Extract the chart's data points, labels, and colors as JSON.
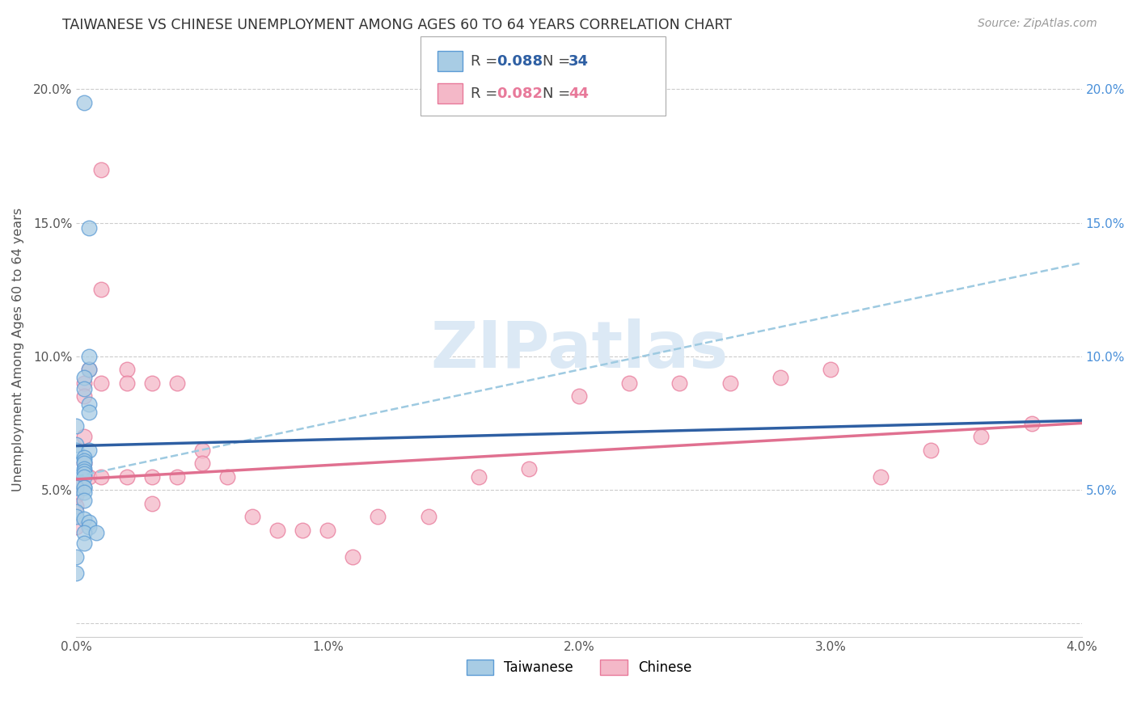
{
  "title": "TAIWANESE VS CHINESE UNEMPLOYMENT AMONG AGES 60 TO 64 YEARS CORRELATION CHART",
  "source": "Source: ZipAtlas.com",
  "ylabel": "Unemployment Among Ages 60 to 64 years",
  "xlim": [
    0.0,
    0.04
  ],
  "ylim": [
    -0.005,
    0.21
  ],
  "xticks": [
    0.0,
    0.01,
    0.02,
    0.03,
    0.04
  ],
  "xtick_labels": [
    "0.0%",
    "1.0%",
    "2.0%",
    "3.0%",
    "4.0%"
  ],
  "yticks": [
    0.0,
    0.05,
    0.1,
    0.15,
    0.2
  ],
  "ytick_labels_left": [
    "",
    "5.0%",
    "10.0%",
    "15.0%",
    "20.0%"
  ],
  "ytick_labels_right": [
    "",
    "5.0%",
    "10.0%",
    "15.0%",
    "20.0%"
  ],
  "tw_fill": "#a8cce4",
  "tw_edge": "#5b9bd5",
  "ch_fill": "#f4b8c8",
  "ch_edge": "#e8799a",
  "tw_line_color": "#2e5fa3",
  "ch_line_color": "#e07090",
  "tw_dash_color": "#9ecae1",
  "watermark_color": "#dce9f5",
  "bg_color": "#ffffff",
  "grid_color": "#cccccc",
  "tw_x": [
    0.0003,
    0.0005,
    0.0005,
    0.0003,
    0.0003,
    0.0005,
    0.0005,
    0.0,
    0.0,
    0.0,
    0.0005,
    0.0003,
    0.0003,
    0.0003,
    0.0003,
    0.0003,
    0.0003,
    0.0003,
    0.0003,
    0.0,
    0.0003,
    0.0003,
    0.0003,
    0.0,
    0.0,
    0.0003,
    0.0005,
    0.0005,
    0.0003,
    0.0008,
    0.0003,
    0.0,
    0.0,
    0.0005
  ],
  "tw_y": [
    0.195,
    0.148,
    0.095,
    0.092,
    0.088,
    0.082,
    0.079,
    0.074,
    0.067,
    0.065,
    0.065,
    0.062,
    0.061,
    0.06,
    0.058,
    0.057,
    0.056,
    0.055,
    0.051,
    0.051,
    0.051,
    0.049,
    0.046,
    0.042,
    0.04,
    0.039,
    0.038,
    0.036,
    0.034,
    0.034,
    0.03,
    0.025,
    0.019,
    0.1
  ],
  "ch_x": [
    0.0,
    0.0,
    0.0,
    0.0,
    0.0003,
    0.0003,
    0.0003,
    0.0003,
    0.0005,
    0.0005,
    0.001,
    0.001,
    0.001,
    0.001,
    0.002,
    0.002,
    0.002,
    0.003,
    0.003,
    0.003,
    0.004,
    0.004,
    0.005,
    0.005,
    0.006,
    0.007,
    0.008,
    0.009,
    0.01,
    0.011,
    0.012,
    0.014,
    0.016,
    0.018,
    0.02,
    0.022,
    0.024,
    0.026,
    0.028,
    0.03,
    0.032,
    0.034,
    0.036,
    0.038
  ],
  "ch_y": [
    0.052,
    0.048,
    0.044,
    0.036,
    0.09,
    0.085,
    0.07,
    0.06,
    0.095,
    0.055,
    0.17,
    0.125,
    0.09,
    0.055,
    0.095,
    0.09,
    0.055,
    0.09,
    0.055,
    0.045,
    0.09,
    0.055,
    0.065,
    0.06,
    0.055,
    0.04,
    0.035,
    0.035,
    0.035,
    0.025,
    0.04,
    0.04,
    0.055,
    0.058,
    0.085,
    0.09,
    0.09,
    0.09,
    0.092,
    0.095,
    0.055,
    0.065,
    0.07,
    0.075
  ],
  "tw_line_x0": 0.0,
  "tw_line_x1": 0.04,
  "tw_line_y0": 0.0665,
  "tw_line_y1": 0.076,
  "ch_line_y0": 0.054,
  "ch_line_y1": 0.075,
  "dash_line_y0": 0.055,
  "dash_line_y1": 0.135
}
